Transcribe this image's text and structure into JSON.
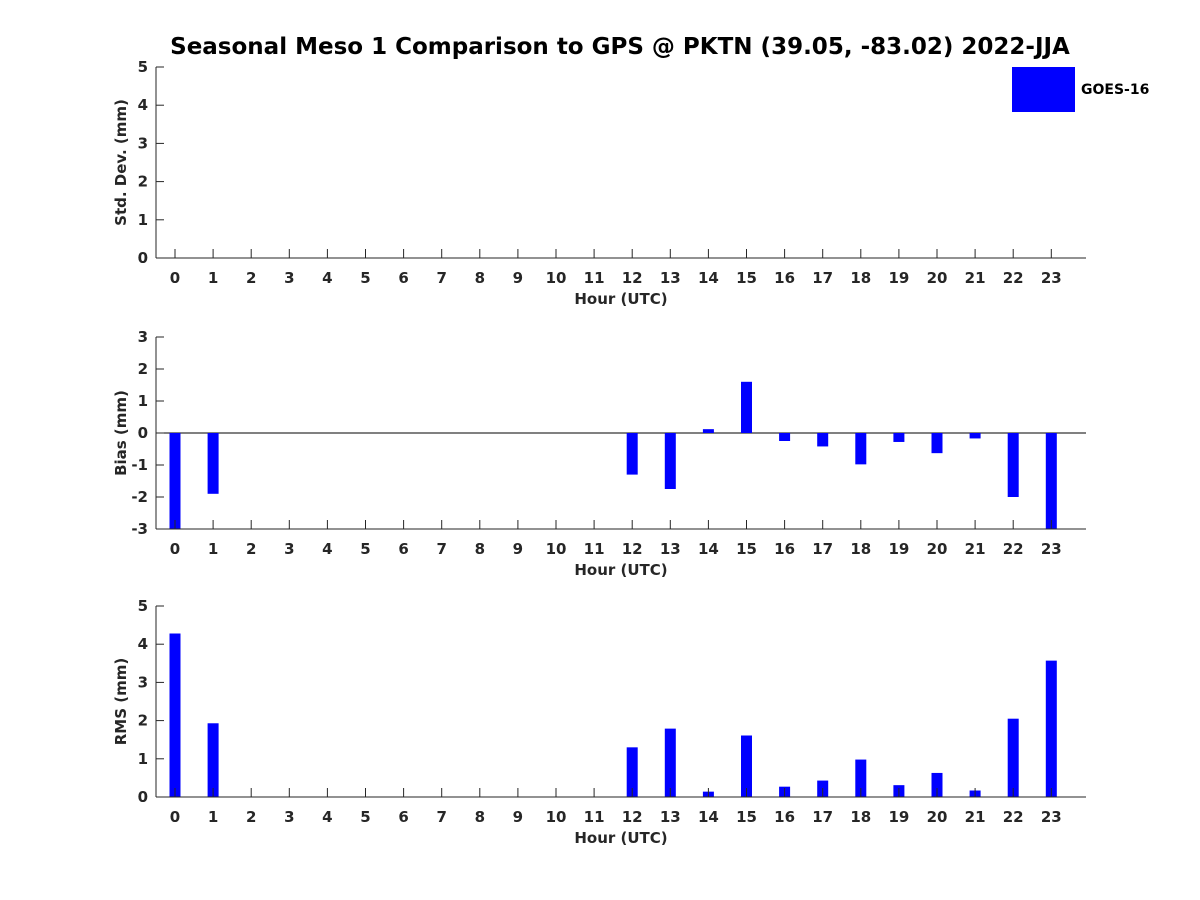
{
  "title": "Seasonal Meso 1 Comparison to GPS @ PKTN (39.05, -83.02) 2022-JJA",
  "legend": {
    "label": "GOES-16",
    "color": "#0000ff",
    "placement": "top-right"
  },
  "chart_data": [
    {
      "type": "bar",
      "name": "stddev",
      "xlabel": "Hour (UTC)",
      "ylabel": "Std. Dev. (mm)",
      "categories": [
        "0",
        "1",
        "2",
        "3",
        "4",
        "5",
        "6",
        "7",
        "8",
        "9",
        "10",
        "11",
        "12",
        "13",
        "14",
        "15",
        "16",
        "17",
        "18",
        "19",
        "20",
        "21",
        "22",
        "23"
      ],
      "ylim": [
        0,
        5
      ],
      "yticks": [
        "0",
        "1",
        "2",
        "3",
        "4",
        "5"
      ],
      "series": [
        {
          "name": "GOES-16",
          "color": "#0000ff",
          "values": [
            0,
            0,
            0,
            0,
            0,
            0,
            0,
            0,
            0,
            0,
            0,
            0,
            0,
            0,
            0,
            0,
            0,
            0,
            0,
            0,
            0,
            0,
            0,
            0
          ]
        }
      ],
      "grid": false
    },
    {
      "type": "bar",
      "name": "bias",
      "xlabel": "Hour (UTC)",
      "ylabel": "Bias (mm)",
      "categories": [
        "0",
        "1",
        "2",
        "3",
        "4",
        "5",
        "6",
        "7",
        "8",
        "9",
        "10",
        "11",
        "12",
        "13",
        "14",
        "15",
        "16",
        "17",
        "18",
        "19",
        "20",
        "21",
        "22",
        "23"
      ],
      "ylim": [
        -3,
        3
      ],
      "yticks": [
        "-3",
        "-2",
        "-1",
        "0",
        "1",
        "2",
        "3"
      ],
      "series": [
        {
          "name": "GOES-16",
          "color": "#0000ff",
          "values": [
            -3.0,
            -1.9,
            null,
            null,
            null,
            null,
            null,
            null,
            null,
            null,
            null,
            null,
            -1.3,
            -1.75,
            0.12,
            1.6,
            -0.25,
            -0.42,
            -0.98,
            -0.28,
            -0.63,
            -0.17,
            -2.0,
            -3.0
          ]
        }
      ],
      "grid": false
    },
    {
      "type": "bar",
      "name": "rms",
      "xlabel": "Hour (UTC)",
      "ylabel": "RMS (mm)",
      "categories": [
        "0",
        "1",
        "2",
        "3",
        "4",
        "5",
        "6",
        "7",
        "8",
        "9",
        "10",
        "11",
        "12",
        "13",
        "14",
        "15",
        "16",
        "17",
        "18",
        "19",
        "20",
        "21",
        "22",
        "23"
      ],
      "ylim": [
        0,
        5
      ],
      "yticks": [
        "0",
        "1",
        "2",
        "3",
        "4",
        "5"
      ],
      "series": [
        {
          "name": "GOES-16",
          "color": "#0000ff",
          "values": [
            4.28,
            1.93,
            null,
            null,
            null,
            null,
            null,
            null,
            null,
            null,
            null,
            null,
            1.3,
            1.79,
            0.14,
            1.61,
            0.27,
            0.43,
            0.98,
            0.31,
            0.63,
            0.17,
            2.05,
            3.57
          ]
        }
      ],
      "grid": false
    }
  ]
}
